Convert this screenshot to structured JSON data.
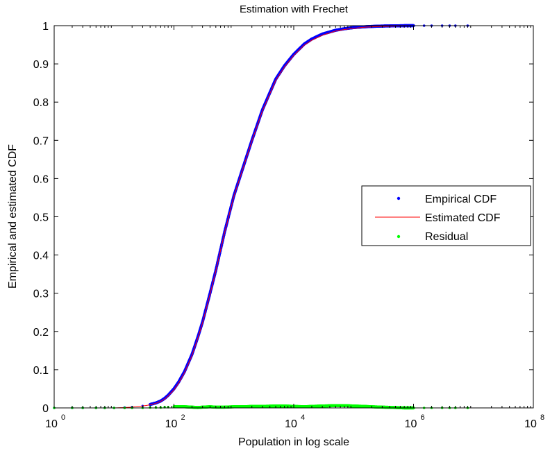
{
  "chart_data": {
    "type": "line",
    "title": "Estimation with Frechet",
    "xlabel": "Population in log scale",
    "ylabel": "Empirical and estimated CDF",
    "xscale": "log",
    "xlim": [
      1,
      100000000
    ],
    "ylim": [
      0,
      1
    ],
    "x_ticks": [
      {
        "base": "10",
        "exp": "0"
      },
      {
        "base": "10",
        "exp": "2"
      },
      {
        "base": "10",
        "exp": "4"
      },
      {
        "base": "10",
        "exp": "6"
      },
      {
        "base": "10",
        "exp": "8"
      }
    ],
    "y_ticks": [
      "0",
      "0.1",
      "0.2",
      "0.3",
      "0.4",
      "0.5",
      "0.6",
      "0.7",
      "0.8",
      "0.9",
      "1"
    ],
    "grid": false,
    "legend_position": "center-right",
    "series": [
      {
        "name": "Empirical CDF",
        "style": "dots",
        "color": "#0000ff",
        "x": [
          1,
          2,
          3,
          5,
          7,
          10,
          15,
          20,
          30,
          40,
          50,
          60,
          70,
          80,
          100,
          120,
          150,
          200,
          250,
          300,
          400,
          500,
          700,
          1000,
          1500,
          2000,
          3000,
          5000,
          7000,
          10000,
          15000,
          20000,
          30000,
          50000,
          70000,
          100000,
          150000,
          200000,
          300000,
          500000,
          700000,
          1000000,
          1500000,
          2000000,
          3000000,
          4000000,
          5000000,
          8000000
        ],
        "y": [
          0.0,
          0.0,
          0.0,
          0.0,
          0.0,
          0.0,
          0.001,
          0.002,
          0.005,
          0.009,
          0.013,
          0.018,
          0.025,
          0.033,
          0.05,
          0.068,
          0.095,
          0.14,
          0.185,
          0.225,
          0.3,
          0.36,
          0.46,
          0.555,
          0.64,
          0.7,
          0.78,
          0.86,
          0.895,
          0.925,
          0.952,
          0.965,
          0.978,
          0.988,
          0.992,
          0.995,
          0.997,
          0.998,
          0.999,
          0.9995,
          1.0,
          1.0,
          1.0,
          1.0,
          1.0,
          1.0,
          1.0,
          1.0
        ]
      },
      {
        "name": "Estimated CDF",
        "style": "line",
        "color": "#ff0000",
        "x": [
          1,
          2,
          3,
          5,
          7,
          10,
          15,
          20,
          30,
          40,
          50,
          60,
          70,
          80,
          100,
          120,
          150,
          200,
          250,
          300,
          400,
          500,
          700,
          1000,
          1500,
          2000,
          3000,
          5000,
          7000,
          10000,
          15000,
          20000,
          30000,
          50000,
          70000,
          100000,
          150000,
          200000,
          300000,
          500000,
          700000,
          1000000,
          1500000,
          2000000,
          3000000,
          5000000,
          8000000
        ],
        "y": [
          0.0,
          0.0,
          0.0,
          0.0,
          0.0,
          0.0,
          0.001,
          0.002,
          0.005,
          0.008,
          0.012,
          0.017,
          0.023,
          0.031,
          0.047,
          0.065,
          0.092,
          0.137,
          0.182,
          0.222,
          0.297,
          0.358,
          0.458,
          0.553,
          0.638,
          0.698,
          0.777,
          0.857,
          0.892,
          0.922,
          0.949,
          0.962,
          0.975,
          0.986,
          0.99,
          0.993,
          0.996,
          0.997,
          0.998,
          0.999,
          0.9995,
          1.0,
          1.0,
          1.0,
          1.0,
          1.0,
          1.0
        ]
      },
      {
        "name": "Residual",
        "style": "dots",
        "color": "#00ff00",
        "x": [
          1,
          2,
          3,
          5,
          7,
          10,
          15,
          20,
          30,
          40,
          50,
          60,
          70,
          80,
          100,
          120,
          150,
          200,
          250,
          300,
          400,
          500,
          700,
          1000,
          1500,
          2000,
          3000,
          5000,
          7000,
          10000,
          15000,
          20000,
          30000,
          50000,
          70000,
          100000,
          150000,
          200000,
          300000,
          500000,
          700000,
          1000000,
          1500000,
          2000000,
          3000000,
          4000000,
          5000000,
          8000000
        ],
        "y": [
          0.0,
          0.0,
          0.0,
          0.0,
          0.0,
          0.0,
          0.0,
          0.0,
          0.0,
          0.001,
          0.001,
          0.001,
          0.002,
          0.002,
          0.003,
          0.003,
          0.003,
          0.002,
          0.001,
          0.002,
          0.003,
          0.002,
          0.002,
          0.003,
          0.003,
          0.004,
          0.004,
          0.005,
          0.005,
          0.004,
          0.003,
          0.004,
          0.005,
          0.006,
          0.006,
          0.005,
          0.004,
          0.003,
          0.002,
          0.001,
          0.0,
          0.0,
          0.0,
          0.0,
          0.0,
          0.0,
          0.0,
          0.0
        ]
      }
    ]
  }
}
